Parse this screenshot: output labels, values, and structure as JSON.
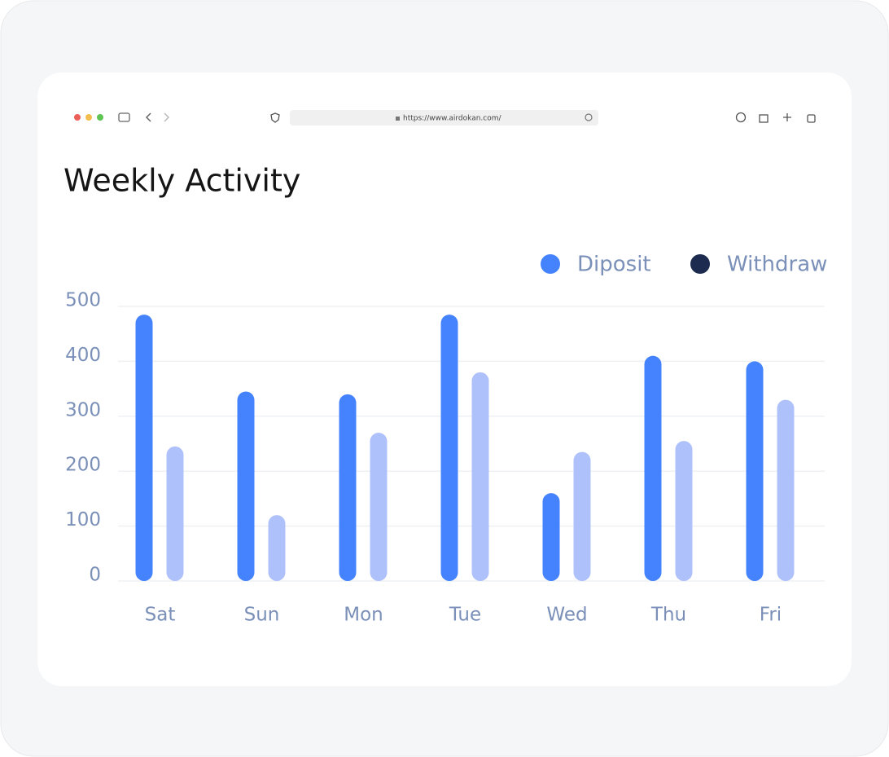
{
  "browser": {
    "url": "https://www.airdokan.com/"
  },
  "chart_data": {
    "type": "bar",
    "title": "Weekly Activity",
    "categories": [
      "Sat",
      "Sun",
      "Mon",
      "Tue",
      "Wed",
      "Thu",
      "Fri"
    ],
    "series": [
      {
        "name": "Diposit",
        "color": "#4483fd",
        "legend_color": "#4483fd",
        "values": [
          485,
          345,
          340,
          485,
          160,
          410,
          400
        ]
      },
      {
        "name": "Withdraw",
        "color": "#afc1fb",
        "legend_color": "#1c2b4f",
        "values": [
          245,
          120,
          270,
          380,
          235,
          255,
          330
        ]
      }
    ],
    "ylim": [
      0,
      500
    ],
    "yticks": [
      0,
      100,
      200,
      300,
      400,
      500
    ],
    "grid": true,
    "legend": "top-right"
  }
}
